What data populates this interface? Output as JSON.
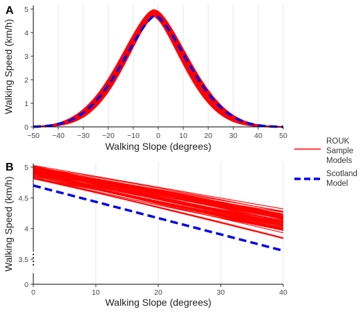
{
  "legend": {
    "entries": [
      {
        "label_lines": [
          "ROUK",
          "Sample",
          "Models"
        ],
        "color": "#ff0000",
        "style": "solid"
      },
      {
        "label_lines": [
          "Scotland",
          "Model"
        ],
        "color": "#0000ee",
        "style": "dashed"
      }
    ]
  },
  "chart_data": [
    {
      "panel": "A",
      "type": "line",
      "xlabel": "Walking Slope (degrees)",
      "ylabel": "Walking Speed (km/h)",
      "xlim": [
        -50,
        50
      ],
      "ylim": [
        0,
        5
      ],
      "xticks": [
        -50,
        -40,
        -30,
        -20,
        -10,
        0,
        10,
        20,
        30,
        40,
        50
      ],
      "xtick_labels": [
        "−50",
        "−40",
        "−30",
        "−20",
        "−10",
        "0",
        "10",
        "20",
        "30",
        "40",
        "50"
      ],
      "yticks": [
        0,
        1,
        2,
        3,
        4,
        5
      ],
      "grid": "vertical",
      "ensemble": {
        "count": 60,
        "color": "#ff0000",
        "peak_range": [
          4.72,
          4.98
        ],
        "peak_slope_range": [
          -2.6,
          -1.0
        ],
        "width_factor_range": [
          0.92,
          1.14
        ]
      },
      "scotland": {
        "color": "#0000ee",
        "peak": 4.72,
        "peak_slope": -1.2,
        "width_factor": 0.96
      }
    },
    {
      "panel": "B",
      "type": "line",
      "xlabel": "Walking Slope (degrees)",
      "ylabel": "Walking Speed (km/h)",
      "xlim": [
        0,
        40
      ],
      "ylim": [
        0,
        5
      ],
      "xticks": [
        0,
        10,
        20,
        30,
        40
      ],
      "xtick_labels": [
        "0",
        "10",
        "20",
        "30",
        "40"
      ],
      "yticks": [
        0,
        3.5,
        4,
        4.5,
        5
      ],
      "ytick_labels": [
        "0",
        "3.5",
        "4",
        "4.5",
        "5"
      ],
      "axis_break": true,
      "grid": "vertical",
      "ensemble": {
        "count": 60,
        "color": "#ff0000",
        "start_range": [
          4.78,
          5.05
        ],
        "end_range": [
          3.82,
          4.36
        ]
      },
      "scotland": {
        "color": "#0000ee",
        "x": [
          0,
          40
        ],
        "y": [
          4.7,
          3.64
        ]
      }
    }
  ],
  "panel_tags": {
    "a": "A",
    "b": "B"
  }
}
